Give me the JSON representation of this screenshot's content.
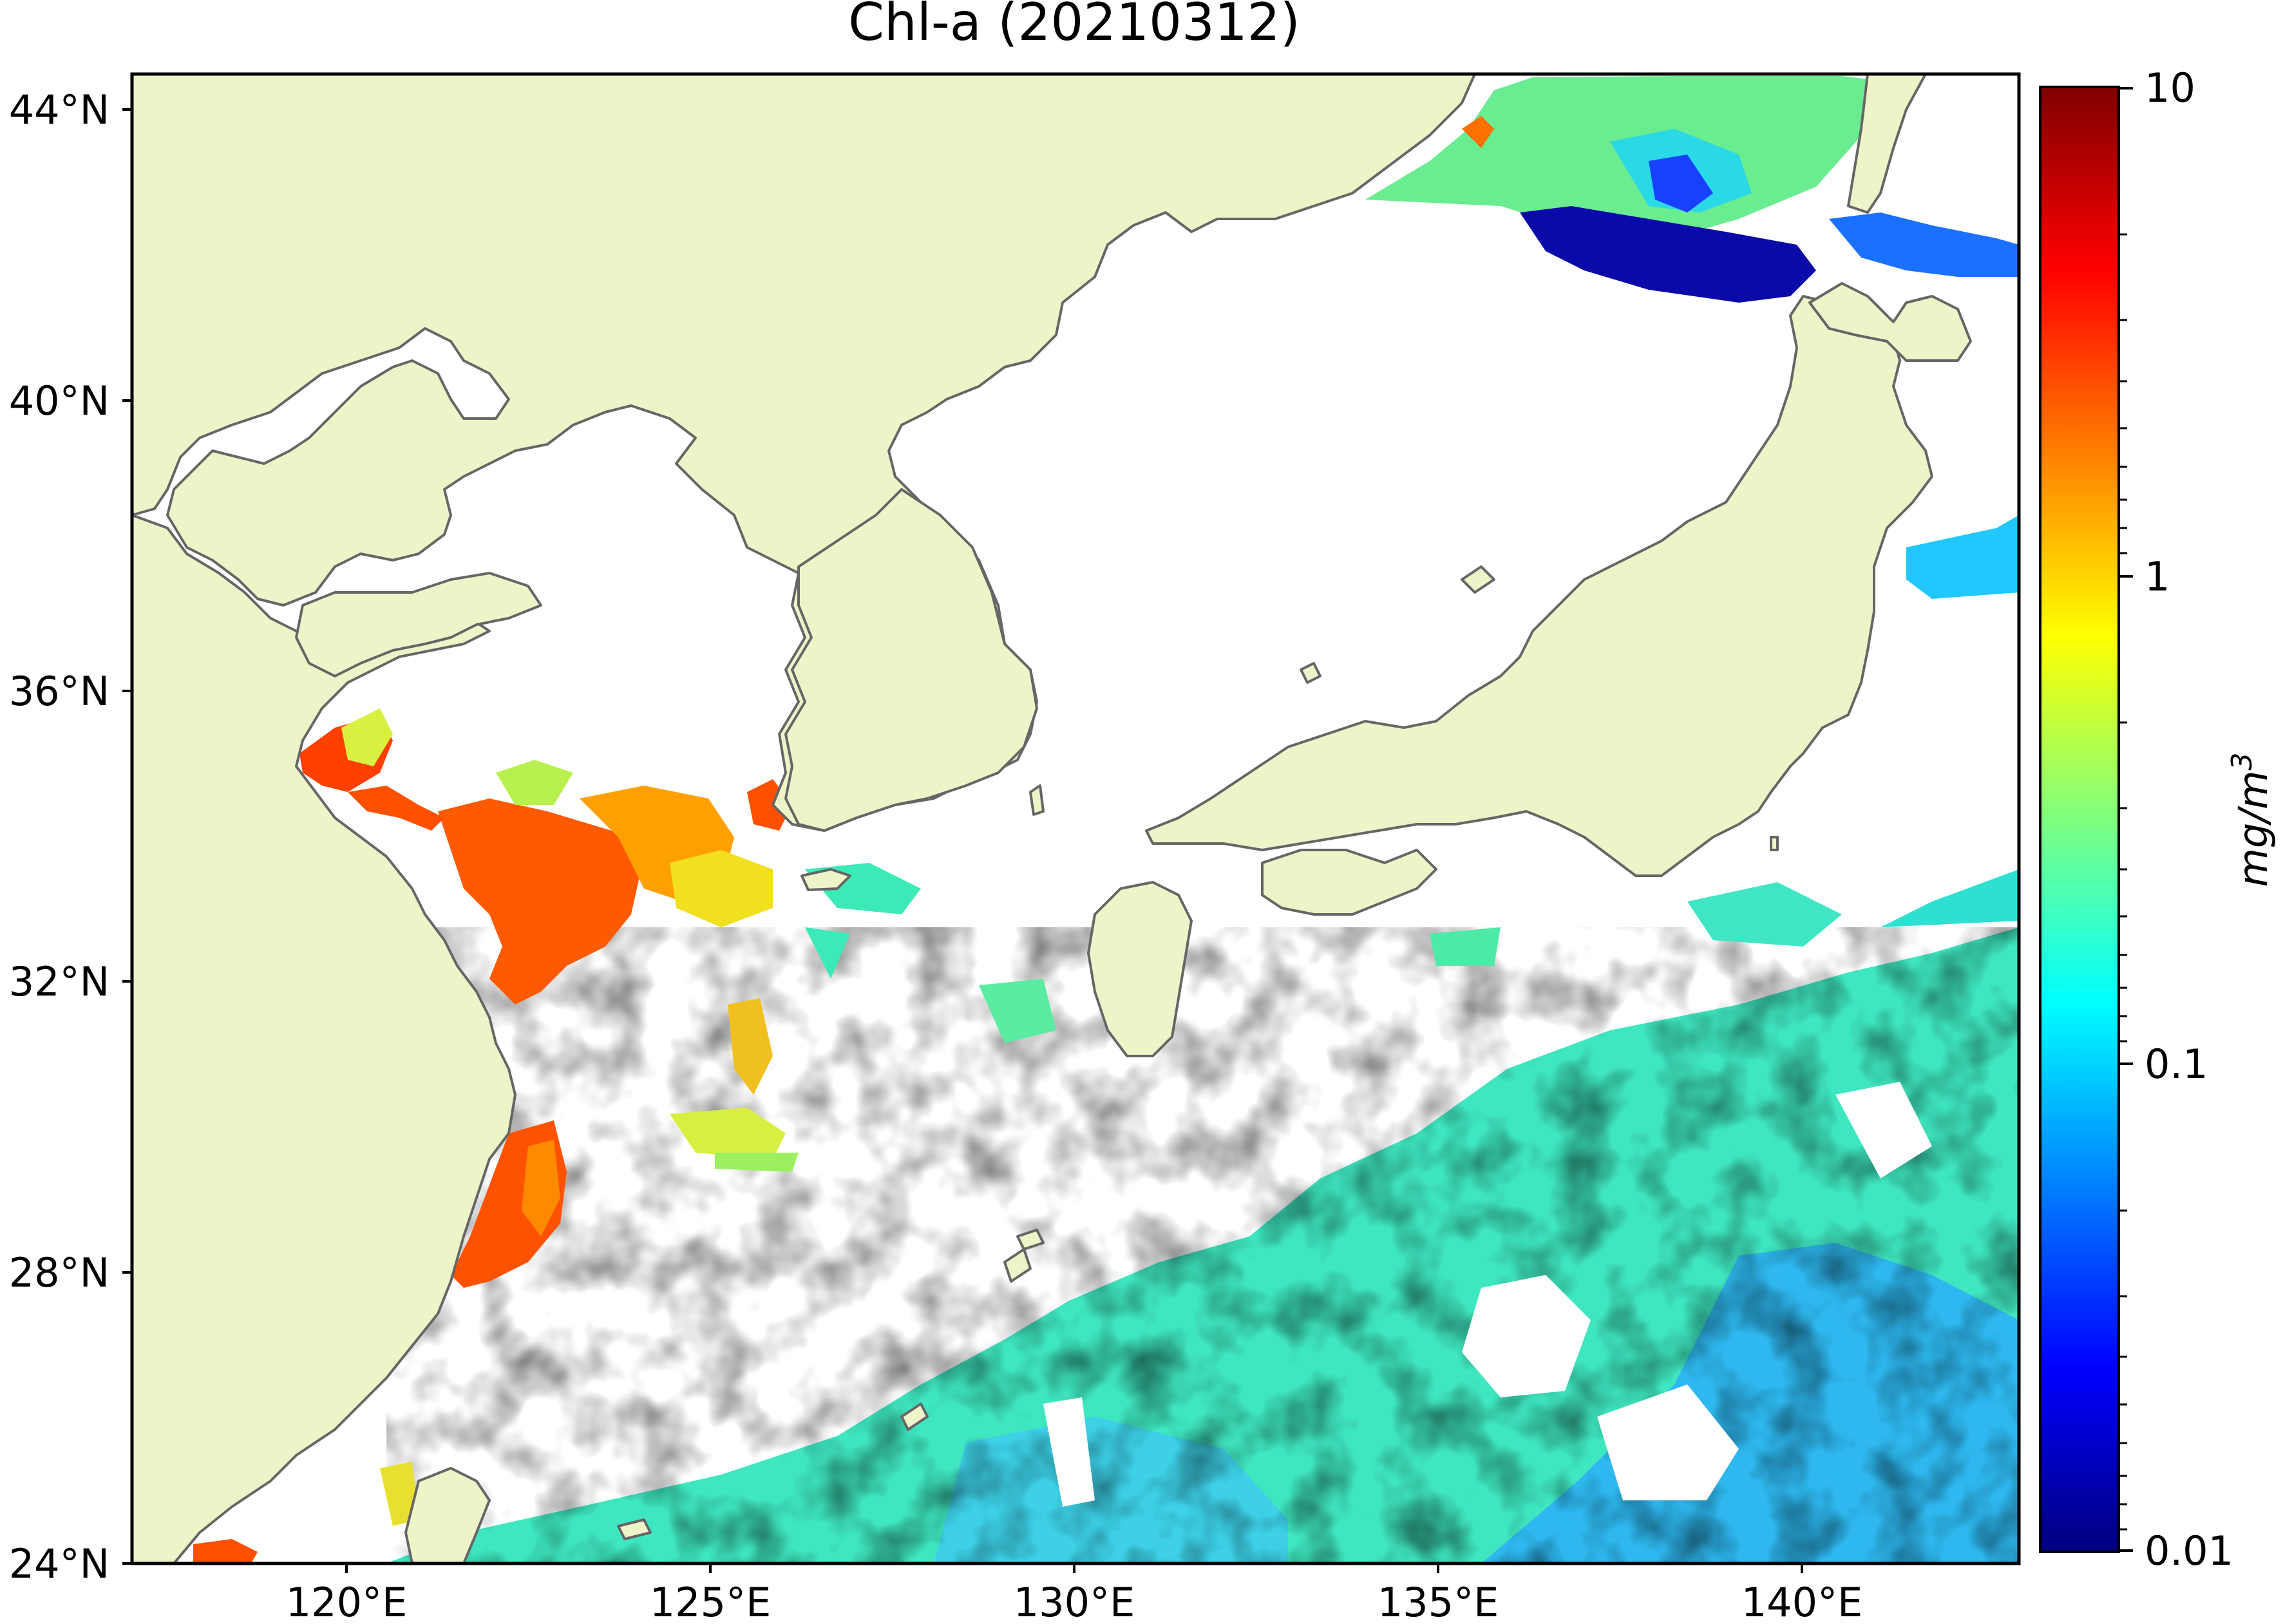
{
  "title": "Chl-a (20210312)",
  "lat_ticks": [
    "44°N",
    "40°N",
    "36°N",
    "32°N",
    "28°N",
    "24°N"
  ],
  "lon_ticks": [
    "120°E",
    "125°E",
    "130°E",
    "135°E",
    "140°E"
  ],
  "colorbar": {
    "ticks": [
      "10",
      "1",
      "0.1",
      "0.01"
    ],
    "unit": "mg/m",
    "unit_exponent": "3",
    "scale": "log",
    "range": [
      0.01,
      10
    ],
    "colormap": "jet",
    "colors": [
      "#00007f",
      "#0000ff",
      "#007fff",
      "#00ffff",
      "#7fff7f",
      "#ffff00",
      "#ff7f00",
      "#ff0000",
      "#7f0000"
    ]
  },
  "map": {
    "lon_range": [
      116.5,
      143
    ],
    "lat_range": [
      24,
      44.5
    ],
    "land_color": "#eff4c8",
    "ocean_color": "#ffffff",
    "coast_color": "#666666"
  }
}
